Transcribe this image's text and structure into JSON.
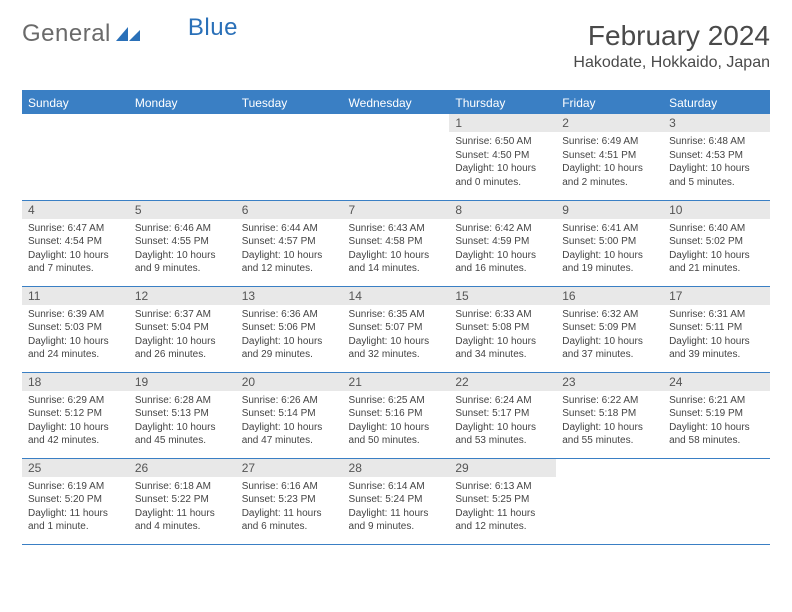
{
  "logo": {
    "general": "General",
    "blue": "Blue"
  },
  "header": {
    "month_title": "February 2024",
    "location": "Hakodate, Hokkaido, Japan"
  },
  "colors": {
    "header_bar": "#3a7fc4",
    "daynum_bg": "#e8e8e8",
    "text": "#444444",
    "logo_gray": "#6a6a6a",
    "logo_blue": "#2a70b8"
  },
  "weekdays": [
    "Sunday",
    "Monday",
    "Tuesday",
    "Wednesday",
    "Thursday",
    "Friday",
    "Saturday"
  ],
  "weeks": [
    [
      {
        "empty": true
      },
      {
        "empty": true
      },
      {
        "empty": true
      },
      {
        "empty": true
      },
      {
        "num": "1",
        "sunrise": "Sunrise: 6:50 AM",
        "sunset": "Sunset: 4:50 PM",
        "daylight": "Daylight: 10 hours and 0 minutes."
      },
      {
        "num": "2",
        "sunrise": "Sunrise: 6:49 AM",
        "sunset": "Sunset: 4:51 PM",
        "daylight": "Daylight: 10 hours and 2 minutes."
      },
      {
        "num": "3",
        "sunrise": "Sunrise: 6:48 AM",
        "sunset": "Sunset: 4:53 PM",
        "daylight": "Daylight: 10 hours and 5 minutes."
      }
    ],
    [
      {
        "num": "4",
        "sunrise": "Sunrise: 6:47 AM",
        "sunset": "Sunset: 4:54 PM",
        "daylight": "Daylight: 10 hours and 7 minutes."
      },
      {
        "num": "5",
        "sunrise": "Sunrise: 6:46 AM",
        "sunset": "Sunset: 4:55 PM",
        "daylight": "Daylight: 10 hours and 9 minutes."
      },
      {
        "num": "6",
        "sunrise": "Sunrise: 6:44 AM",
        "sunset": "Sunset: 4:57 PM",
        "daylight": "Daylight: 10 hours and 12 minutes."
      },
      {
        "num": "7",
        "sunrise": "Sunrise: 6:43 AM",
        "sunset": "Sunset: 4:58 PM",
        "daylight": "Daylight: 10 hours and 14 minutes."
      },
      {
        "num": "8",
        "sunrise": "Sunrise: 6:42 AM",
        "sunset": "Sunset: 4:59 PM",
        "daylight": "Daylight: 10 hours and 16 minutes."
      },
      {
        "num": "9",
        "sunrise": "Sunrise: 6:41 AM",
        "sunset": "Sunset: 5:00 PM",
        "daylight": "Daylight: 10 hours and 19 minutes."
      },
      {
        "num": "10",
        "sunrise": "Sunrise: 6:40 AM",
        "sunset": "Sunset: 5:02 PM",
        "daylight": "Daylight: 10 hours and 21 minutes."
      }
    ],
    [
      {
        "num": "11",
        "sunrise": "Sunrise: 6:39 AM",
        "sunset": "Sunset: 5:03 PM",
        "daylight": "Daylight: 10 hours and 24 minutes."
      },
      {
        "num": "12",
        "sunrise": "Sunrise: 6:37 AM",
        "sunset": "Sunset: 5:04 PM",
        "daylight": "Daylight: 10 hours and 26 minutes."
      },
      {
        "num": "13",
        "sunrise": "Sunrise: 6:36 AM",
        "sunset": "Sunset: 5:06 PM",
        "daylight": "Daylight: 10 hours and 29 minutes."
      },
      {
        "num": "14",
        "sunrise": "Sunrise: 6:35 AM",
        "sunset": "Sunset: 5:07 PM",
        "daylight": "Daylight: 10 hours and 32 minutes."
      },
      {
        "num": "15",
        "sunrise": "Sunrise: 6:33 AM",
        "sunset": "Sunset: 5:08 PM",
        "daylight": "Daylight: 10 hours and 34 minutes."
      },
      {
        "num": "16",
        "sunrise": "Sunrise: 6:32 AM",
        "sunset": "Sunset: 5:09 PM",
        "daylight": "Daylight: 10 hours and 37 minutes."
      },
      {
        "num": "17",
        "sunrise": "Sunrise: 6:31 AM",
        "sunset": "Sunset: 5:11 PM",
        "daylight": "Daylight: 10 hours and 39 minutes."
      }
    ],
    [
      {
        "num": "18",
        "sunrise": "Sunrise: 6:29 AM",
        "sunset": "Sunset: 5:12 PM",
        "daylight": "Daylight: 10 hours and 42 minutes."
      },
      {
        "num": "19",
        "sunrise": "Sunrise: 6:28 AM",
        "sunset": "Sunset: 5:13 PM",
        "daylight": "Daylight: 10 hours and 45 minutes."
      },
      {
        "num": "20",
        "sunrise": "Sunrise: 6:26 AM",
        "sunset": "Sunset: 5:14 PM",
        "daylight": "Daylight: 10 hours and 47 minutes."
      },
      {
        "num": "21",
        "sunrise": "Sunrise: 6:25 AM",
        "sunset": "Sunset: 5:16 PM",
        "daylight": "Daylight: 10 hours and 50 minutes."
      },
      {
        "num": "22",
        "sunrise": "Sunrise: 6:24 AM",
        "sunset": "Sunset: 5:17 PM",
        "daylight": "Daylight: 10 hours and 53 minutes."
      },
      {
        "num": "23",
        "sunrise": "Sunrise: 6:22 AM",
        "sunset": "Sunset: 5:18 PM",
        "daylight": "Daylight: 10 hours and 55 minutes."
      },
      {
        "num": "24",
        "sunrise": "Sunrise: 6:21 AM",
        "sunset": "Sunset: 5:19 PM",
        "daylight": "Daylight: 10 hours and 58 minutes."
      }
    ],
    [
      {
        "num": "25",
        "sunrise": "Sunrise: 6:19 AM",
        "sunset": "Sunset: 5:20 PM",
        "daylight": "Daylight: 11 hours and 1 minute."
      },
      {
        "num": "26",
        "sunrise": "Sunrise: 6:18 AM",
        "sunset": "Sunset: 5:22 PM",
        "daylight": "Daylight: 11 hours and 4 minutes."
      },
      {
        "num": "27",
        "sunrise": "Sunrise: 6:16 AM",
        "sunset": "Sunset: 5:23 PM",
        "daylight": "Daylight: 11 hours and 6 minutes."
      },
      {
        "num": "28",
        "sunrise": "Sunrise: 6:14 AM",
        "sunset": "Sunset: 5:24 PM",
        "daylight": "Daylight: 11 hours and 9 minutes."
      },
      {
        "num": "29",
        "sunrise": "Sunrise: 6:13 AM",
        "sunset": "Sunset: 5:25 PM",
        "daylight": "Daylight: 11 hours and 12 minutes."
      },
      {
        "empty": true
      },
      {
        "empty": true
      }
    ]
  ]
}
